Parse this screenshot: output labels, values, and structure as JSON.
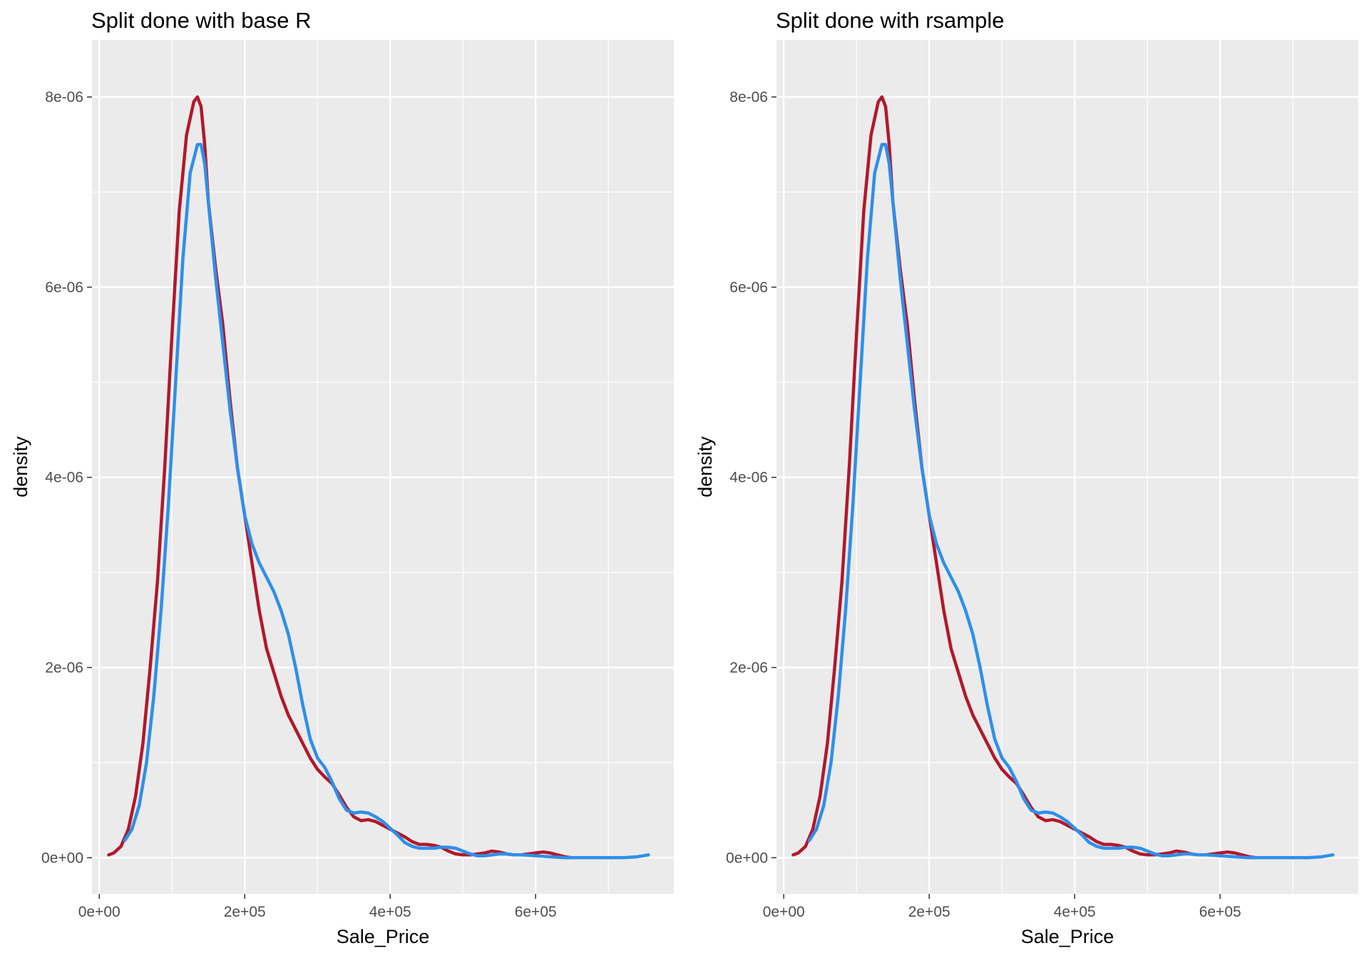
{
  "colors": {
    "panel_background": "#EBEBEB",
    "grid": "#FFFFFF",
    "tick": "#333333",
    "tick_text": "#4D4D4D",
    "series_1": "#B2182B",
    "series_2": "#2E8FEA"
  },
  "chart_data": [
    {
      "type": "line",
      "title": "Split done with base R",
      "xlabel": "Sale_Price",
      "ylabel": "density",
      "xlim": [
        -10000,
        790000
      ],
      "ylim": [
        -3.8e-07,
        8.6e-06
      ],
      "xticks": [
        0,
        200000,
        400000,
        600000
      ],
      "xtick_labels": [
        "0e+00",
        "2e+05",
        "4e+05",
        "6e+05"
      ],
      "yticks": [
        0,
        2e-06,
        4e-06,
        6e-06,
        8e-06
      ],
      "ytick_labels": [
        "0e+00",
        "2e-06",
        "4e-06",
        "6e-06",
        "8e-06"
      ],
      "grid": true,
      "legend": "none",
      "series": [
        {
          "color": "#B2182B",
          "x": [
            13000,
            20000,
            30000,
            40000,
            50000,
            60000,
            70000,
            80000,
            90000,
            100000,
            110000,
            120000,
            130000,
            135000,
            140000,
            145000,
            150000,
            160000,
            170000,
            180000,
            190000,
            200000,
            210000,
            220000,
            230000,
            240000,
            250000,
            260000,
            270000,
            280000,
            290000,
            300000,
            310000,
            320000,
            330000,
            340000,
            350000,
            360000,
            370000,
            380000,
            390000,
            400000,
            410000,
            420000,
            430000,
            440000,
            450000,
            460000,
            470000,
            480000,
            490000,
            500000,
            510000,
            520000,
            530000,
            540000,
            550000,
            560000,
            570000,
            580000,
            590000,
            600000,
            610000,
            620000,
            630000,
            640000,
            650000
          ],
          "y": [
            3e-08,
            5e-08,
            1.2e-07,
            3e-07,
            6.5e-07,
            1.2e-06,
            2e-06,
            2.9e-06,
            4.1e-06,
            5.5e-06,
            6.8e-06,
            7.6e-06,
            7.95e-06,
            8e-06,
            7.9e-06,
            7.5e-06,
            6.9e-06,
            6.2e-06,
            5.6e-06,
            4.8e-06,
            4.1e-06,
            3.6e-06,
            3.1e-06,
            2.6e-06,
            2.2e-06,
            1.95e-06,
            1.7e-06,
            1.5e-06,
            1.35e-06,
            1.2e-06,
            1.05e-06,
            9.3e-07,
            8.5e-07,
            7.8e-07,
            6.6e-07,
            5.3e-07,
            4.3e-07,
            3.9e-07,
            4e-07,
            3.8e-07,
            3.4e-07,
            3e-07,
            2.6e-07,
            2.2e-07,
            1.7e-07,
            1.4e-07,
            1.4e-07,
            1.3e-07,
            1.1e-07,
            7e-08,
            4e-08,
            3e-08,
            3e-08,
            4e-08,
            5e-08,
            7e-08,
            6e-08,
            4e-08,
            3e-08,
            3e-08,
            4e-08,
            5e-08,
            6e-08,
            5e-08,
            3e-08,
            1e-08,
            0
          ]
        },
        {
          "color": "#2E8FEA",
          "x": [
            35000,
            45000,
            55000,
            65000,
            75000,
            85000,
            95000,
            105000,
            115000,
            125000,
            135000,
            140000,
            145000,
            150000,
            160000,
            170000,
            180000,
            190000,
            200000,
            210000,
            220000,
            230000,
            240000,
            250000,
            260000,
            270000,
            280000,
            290000,
            300000,
            310000,
            320000,
            330000,
            340000,
            350000,
            360000,
            370000,
            380000,
            390000,
            400000,
            410000,
            420000,
            430000,
            440000,
            450000,
            460000,
            470000,
            480000,
            490000,
            500000,
            510000,
            520000,
            530000,
            540000,
            550000,
            560000,
            570000,
            580000,
            600000,
            620000,
            640000,
            660000,
            680000,
            700000,
            720000,
            740000,
            755000
          ],
          "y": [
            1.8e-07,
            3e-07,
            5.5e-07,
            1e-06,
            1.7e-06,
            2.6e-06,
            3.7e-06,
            5e-06,
            6.3e-06,
            7.2e-06,
            7.5e-06,
            7.5e-06,
            7.3e-06,
            6.9e-06,
            6.1e-06,
            5.4e-06,
            4.7e-06,
            4.1e-06,
            3.6e-06,
            3.3e-06,
            3.1e-06,
            2.95e-06,
            2.8e-06,
            2.6e-06,
            2.35e-06,
            2e-06,
            1.6e-06,
            1.25e-06,
            1.05e-06,
            9.5e-07,
            8e-07,
            6.2e-07,
            5e-07,
            4.7e-07,
            4.8e-07,
            4.7e-07,
            4.3e-07,
            3.8e-07,
            3.1e-07,
            2.4e-07,
            1.6e-07,
            1.2e-07,
            1e-07,
            1e-07,
            1e-07,
            1.1e-07,
            1.1e-07,
            1e-07,
            7e-08,
            4e-08,
            2e-08,
            2e-08,
            3e-08,
            4e-08,
            4e-08,
            3e-08,
            3e-08,
            2e-08,
            1e-08,
            0,
            0,
            0,
            0,
            0,
            1e-08,
            3e-08
          ]
        }
      ]
    },
    {
      "type": "line",
      "title": "Split done with rsample",
      "xlabel": "Sale_Price",
      "ylabel": "density",
      "xlim": [
        -10000,
        790000
      ],
      "ylim": [
        -3.8e-07,
        8.6e-06
      ],
      "xticks": [
        0,
        200000,
        400000,
        600000
      ],
      "xtick_labels": [
        "0e+00",
        "2e+05",
        "4e+05",
        "6e+05"
      ],
      "yticks": [
        0,
        2e-06,
        4e-06,
        6e-06,
        8e-06
      ],
      "ytick_labels": [
        "0e+00",
        "2e-06",
        "4e-06",
        "6e-06",
        "8e-06"
      ],
      "grid": true,
      "legend": "none",
      "series": [
        {
          "color": "#B2182B",
          "x": [
            13000,
            20000,
            30000,
            40000,
            50000,
            60000,
            70000,
            80000,
            90000,
            100000,
            110000,
            120000,
            130000,
            135000,
            140000,
            145000,
            150000,
            160000,
            170000,
            180000,
            190000,
            200000,
            210000,
            220000,
            230000,
            240000,
            250000,
            260000,
            270000,
            280000,
            290000,
            300000,
            310000,
            320000,
            330000,
            340000,
            350000,
            360000,
            370000,
            380000,
            390000,
            400000,
            410000,
            420000,
            430000,
            440000,
            450000,
            460000,
            470000,
            480000,
            490000,
            500000,
            510000,
            520000,
            530000,
            540000,
            550000,
            560000,
            570000,
            580000,
            590000,
            600000,
            610000,
            620000,
            630000,
            640000,
            650000
          ],
          "y": [
            3e-08,
            5e-08,
            1.2e-07,
            3e-07,
            6.5e-07,
            1.2e-06,
            2e-06,
            2.9e-06,
            4.1e-06,
            5.5e-06,
            6.8e-06,
            7.6e-06,
            7.95e-06,
            8e-06,
            7.9e-06,
            7.5e-06,
            6.9e-06,
            6.2e-06,
            5.6e-06,
            4.8e-06,
            4.1e-06,
            3.6e-06,
            3.1e-06,
            2.6e-06,
            2.2e-06,
            1.95e-06,
            1.7e-06,
            1.5e-06,
            1.35e-06,
            1.2e-06,
            1.05e-06,
            9.3e-07,
            8.5e-07,
            7.8e-07,
            6.6e-07,
            5.3e-07,
            4.3e-07,
            3.9e-07,
            4e-07,
            3.8e-07,
            3.4e-07,
            3e-07,
            2.6e-07,
            2.2e-07,
            1.7e-07,
            1.4e-07,
            1.4e-07,
            1.3e-07,
            1.1e-07,
            7e-08,
            4e-08,
            3e-08,
            3e-08,
            4e-08,
            5e-08,
            7e-08,
            6e-08,
            4e-08,
            3e-08,
            3e-08,
            4e-08,
            5e-08,
            6e-08,
            5e-08,
            3e-08,
            1e-08,
            0
          ]
        },
        {
          "color": "#2E8FEA",
          "x": [
            35000,
            45000,
            55000,
            65000,
            75000,
            85000,
            95000,
            105000,
            115000,
            125000,
            135000,
            140000,
            145000,
            150000,
            160000,
            170000,
            180000,
            190000,
            200000,
            210000,
            220000,
            230000,
            240000,
            250000,
            260000,
            270000,
            280000,
            290000,
            300000,
            310000,
            320000,
            330000,
            340000,
            350000,
            360000,
            370000,
            380000,
            390000,
            400000,
            410000,
            420000,
            430000,
            440000,
            450000,
            460000,
            470000,
            480000,
            490000,
            500000,
            510000,
            520000,
            530000,
            540000,
            550000,
            560000,
            570000,
            580000,
            600000,
            620000,
            640000,
            660000,
            680000,
            700000,
            720000,
            740000,
            755000
          ],
          "y": [
            1.8e-07,
            3e-07,
            5.5e-07,
            1e-06,
            1.7e-06,
            2.6e-06,
            3.7e-06,
            5e-06,
            6.3e-06,
            7.2e-06,
            7.5e-06,
            7.5e-06,
            7.3e-06,
            6.9e-06,
            6.1e-06,
            5.4e-06,
            4.7e-06,
            4.1e-06,
            3.6e-06,
            3.3e-06,
            3.1e-06,
            2.95e-06,
            2.8e-06,
            2.6e-06,
            2.35e-06,
            2e-06,
            1.6e-06,
            1.25e-06,
            1.05e-06,
            9.5e-07,
            8e-07,
            6.2e-07,
            5e-07,
            4.7e-07,
            4.8e-07,
            4.7e-07,
            4.3e-07,
            3.8e-07,
            3.1e-07,
            2.4e-07,
            1.6e-07,
            1.2e-07,
            1e-07,
            1e-07,
            1e-07,
            1.1e-07,
            1.1e-07,
            1e-07,
            7e-08,
            4e-08,
            2e-08,
            2e-08,
            3e-08,
            4e-08,
            4e-08,
            3e-08,
            3e-08,
            2e-08,
            1e-08,
            0,
            0,
            0,
            0,
            0,
            1e-08,
            3e-08
          ]
        }
      ]
    }
  ]
}
